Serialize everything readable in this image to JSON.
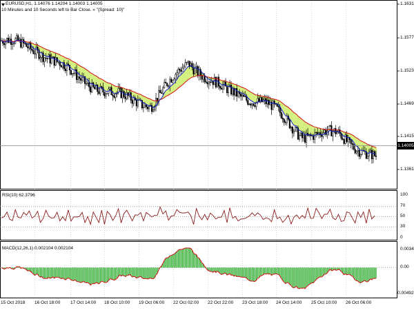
{
  "header": {
    "symbol": "EURUSD,H1",
    "ohlc": "1.14076 1.14204 1.14003 1.14005",
    "info": "10 Minutes and 10 Seconds left to Bar Close. »   \"{Spread: 10}\""
  },
  "price_axis": [
    "1.16310",
    "1.15770",
    "1.15230",
    "1.14690",
    "1.14155",
    "1.13615"
  ],
  "current_price": "1.14005",
  "rsi": {
    "label": "RSI(10) 62.3796",
    "levels": [
      "100",
      "70",
      "50",
      "30",
      "0"
    ]
  },
  "macd": {
    "label": "MACD(12,26,1) 0.002104 0.002104",
    "levels": [
      "0.003426",
      "0.00",
      "-0.004927"
    ]
  },
  "time_axis": [
    "15 Oct 2018",
    "16 Oct 18:00",
    "17 Oct 14:00",
    "18 Oct 10:00",
    "19 Oct 06:00",
    "22 Oct 02:00",
    "22 Oct 22:00",
    "23 Oct 18:00",
    "24 Oct 14:00",
    "25 Oct 10:00",
    "26 Oct 06:00"
  ],
  "colors": {
    "bull": "#000000",
    "bear": "#000000",
    "ribbon": "#c8ec5a",
    "fast_ma": "#1020c0",
    "slow_ma": "#d01010",
    "rsi_line": "#8b1a1a",
    "macd_hist": "#10a010",
    "macd_signal": "#d01010"
  },
  "chart_data": {
    "type": "line",
    "title": "EURUSD,H1",
    "xlabel": "",
    "ylabel": "",
    "ylim": [
      1.1335,
      1.1645
    ],
    "x": [
      "15 Oct 2018",
      "16 Oct 18:00",
      "17 Oct 14:00",
      "18 Oct 10:00",
      "19 Oct 06:00",
      "22 Oct 02:00",
      "22 Oct 22:00",
      "23 Oct 18:00",
      "24 Oct 14:00",
      "25 Oct 10:00",
      "26 Oct 06:00"
    ],
    "series": [
      {
        "values": [
          1.158,
          1.1565,
          1.152,
          1.149,
          1.1475,
          1.1545,
          1.1495,
          1.148,
          1.1425,
          1.1425,
          1.1385
        ]
      }
    ]
  }
}
